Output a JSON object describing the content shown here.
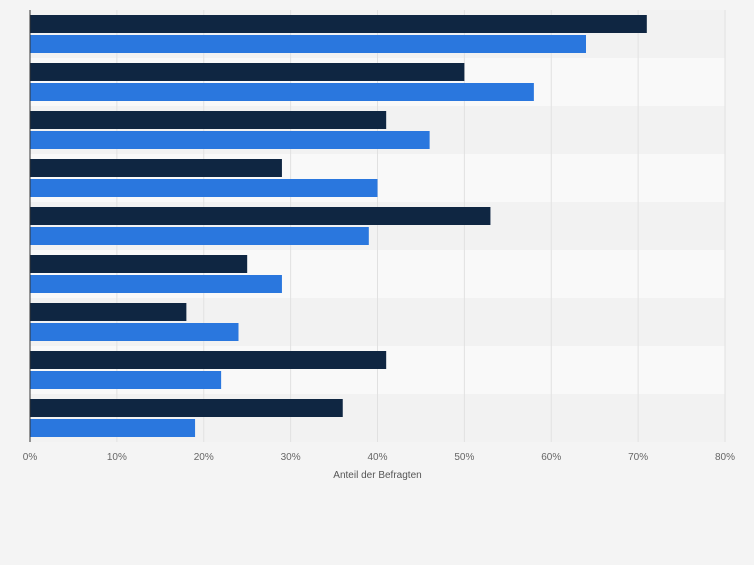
{
  "chart_data": {
    "type": "bar",
    "orientation": "horizontal",
    "xlabel": "Anteil der Befragten",
    "xlim": [
      0,
      80
    ],
    "xticks": [
      0,
      10,
      20,
      30,
      40,
      50,
      60,
      70,
      80
    ],
    "tick_suffix": "%",
    "grid": true,
    "categories_count": 9,
    "series": [
      {
        "color": "#0f2642",
        "values": [
          71,
          50,
          41,
          29,
          53,
          25,
          18,
          41,
          36
        ]
      },
      {
        "color": "#2a77de",
        "values": [
          64,
          58,
          46,
          40,
          39,
          29,
          24,
          22,
          19
        ]
      }
    ]
  }
}
